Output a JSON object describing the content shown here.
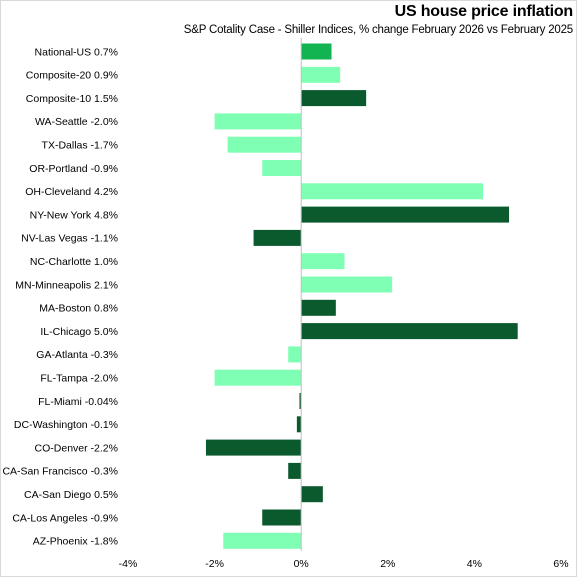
{
  "title": "US house price inflation",
  "subtitle": "S&P Cotality Case - Shiller Indices, % change February 2026 vs February 2025",
  "colors": {
    "light": "#7fffb4",
    "dark": "#0b5a2e",
    "accent": "#12b351",
    "axis": "#bfbfbf"
  },
  "chart_data": {
    "type": "bar",
    "orientation": "horizontal",
    "categories": [
      "National-US 0.7%",
      "Composite-20 0.9%",
      "Composite-10 1.5%",
      "WA-Seattle -2.0%",
      "TX-Dallas -1.7%",
      "OR-Portland -0.9%",
      "OH-Cleveland 4.2%",
      "NY-New York 4.8%",
      "NV-Las Vegas -1.1%",
      "NC-Charlotte 1.0%",
      "MN-Minneapolis 2.1%",
      "MA-Boston 0.8%",
      "IL-Chicago 5.0%",
      "GA-Atlanta -0.3%",
      "FL-Tampa -2.0%",
      "FL-Miami -0.04%",
      "DC-Washington -0.1%",
      "CO-Denver -2.2%",
      "CA-San Francisco -0.3%",
      "CA-San Diego 0.5%",
      "CA-Los Angeles -0.9%",
      "AZ-Phoenix -1.8%"
    ],
    "values": [
      0.7,
      0.9,
      1.5,
      -2.0,
      -1.7,
      -0.9,
      4.2,
      4.8,
      -1.1,
      1.0,
      2.1,
      0.8,
      5.0,
      -0.3,
      -2.0,
      -0.04,
      -0.1,
      -2.2,
      -0.3,
      0.5,
      -0.9,
      -1.8
    ],
    "bar_colors": [
      "accent",
      "light",
      "dark",
      "light",
      "light",
      "light",
      "light",
      "dark",
      "dark",
      "light",
      "light",
      "dark",
      "dark",
      "light",
      "light",
      "dark",
      "dark",
      "dark",
      "dark",
      "dark",
      "dark",
      "light"
    ],
    "xlim": [
      -4,
      6
    ],
    "xticks": [
      -4,
      -2,
      0,
      2,
      4,
      6
    ],
    "xtick_labels": [
      "-4%",
      "-2%",
      "0%",
      "2%",
      "4%",
      "6%"
    ],
    "grid": false,
    "legend": false
  }
}
